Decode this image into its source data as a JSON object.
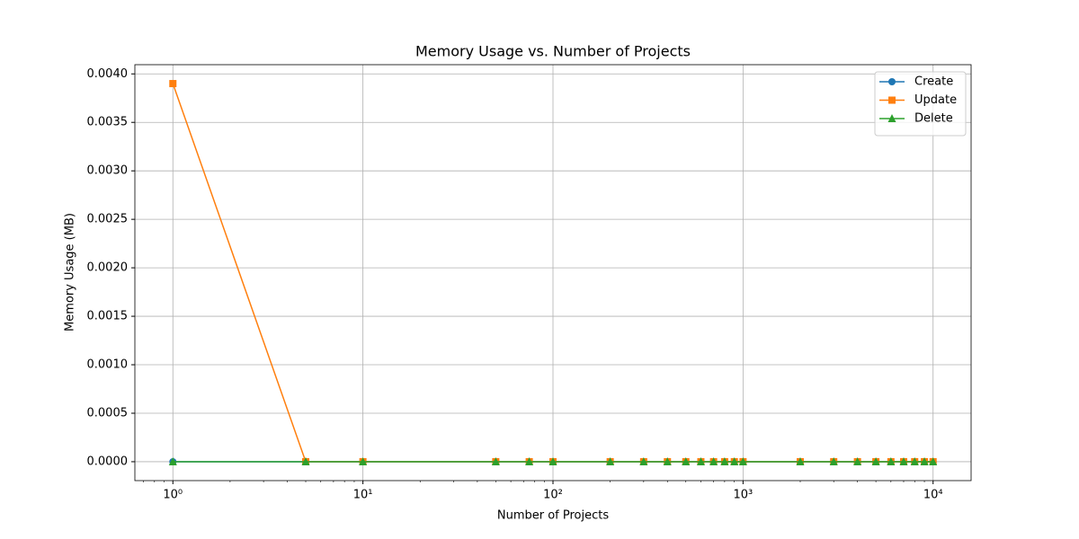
{
  "chart_data": {
    "type": "line",
    "title": "Memory Usage vs. Number of Projects",
    "xlabel": "Number of Projects",
    "ylabel": "Memory Usage (MB)",
    "xscale": "log",
    "grid": true,
    "legend": "upper right",
    "x": [
      1,
      5,
      10,
      50,
      75,
      100,
      200,
      300,
      400,
      500,
      600,
      700,
      800,
      900,
      1000,
      2000,
      3000,
      4000,
      5000,
      6000,
      7000,
      8000,
      9000,
      10000
    ],
    "series": [
      {
        "name": "Create",
        "color": "#1f77b4",
        "marker": "circle",
        "values": [
          0,
          0,
          0,
          0,
          0,
          0,
          0,
          0,
          0,
          0,
          0,
          0,
          0,
          0,
          0,
          0,
          0,
          0,
          0,
          0,
          0,
          0,
          0,
          0
        ]
      },
      {
        "name": "Update",
        "color": "#ff7f0e",
        "marker": "square",
        "values": [
          0.0039,
          0,
          0,
          0,
          0,
          0,
          0,
          0,
          0,
          0,
          0,
          0,
          0,
          0,
          0,
          0,
          0,
          0,
          0,
          0,
          0,
          0,
          0,
          0
        ]
      },
      {
        "name": "Delete",
        "color": "#2ca02c",
        "marker": "triangle",
        "values": [
          0,
          0,
          0,
          0,
          0,
          0,
          0,
          0,
          0,
          0,
          0,
          0,
          0,
          0,
          0,
          0,
          0,
          0,
          0,
          0,
          0,
          0,
          0,
          0
        ]
      }
    ],
    "xlim": [
      0.631,
      15849
    ],
    "ylim": [
      -0.000195,
      0.004095
    ],
    "xticks": [
      {
        "value": 1,
        "label": "10⁰"
      },
      {
        "value": 10,
        "label": "10¹"
      },
      {
        "value": 100,
        "label": "10²"
      },
      {
        "value": 1000,
        "label": "10³"
      },
      {
        "value": 10000,
        "label": "10⁴"
      }
    ],
    "yticks": [
      {
        "value": 0,
        "label": "0.0000"
      },
      {
        "value": 0.0005,
        "label": "0.0005"
      },
      {
        "value": 0.001,
        "label": "0.0010"
      },
      {
        "value": 0.0015,
        "label": "0.0015"
      },
      {
        "value": 0.002,
        "label": "0.0020"
      },
      {
        "value": 0.0025,
        "label": "0.0025"
      },
      {
        "value": 0.003,
        "label": "0.0030"
      },
      {
        "value": 0.0035,
        "label": "0.0035"
      },
      {
        "value": 0.004,
        "label": "0.0040"
      }
    ]
  }
}
